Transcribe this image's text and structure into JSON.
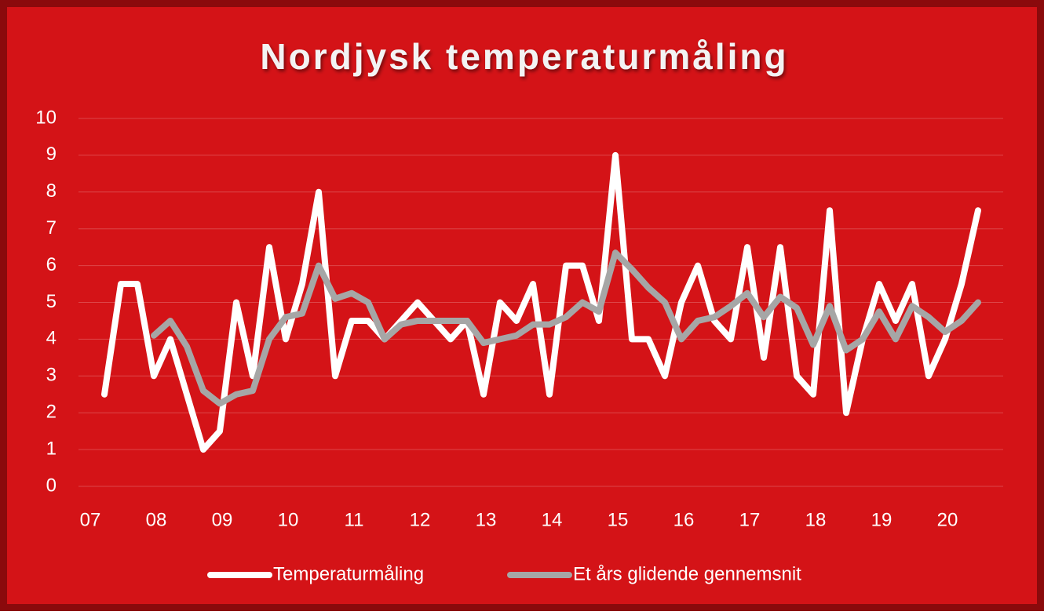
{
  "chart_data": {
    "type": "line",
    "title": "Nordjysk temperaturmåling",
    "categories": [
      "07",
      null,
      null,
      null,
      "08",
      null,
      null,
      null,
      "09",
      null,
      null,
      null,
      "10",
      null,
      null,
      null,
      "11",
      null,
      null,
      null,
      "12",
      null,
      null,
      null,
      "13",
      null,
      null,
      null,
      "14",
      null,
      null,
      null,
      "15",
      null,
      null,
      null,
      "16",
      null,
      null,
      null,
      "17",
      null,
      null,
      null,
      "18",
      null,
      null,
      null,
      "19",
      null,
      null,
      null,
      "20",
      null,
      null
    ],
    "series": [
      {
        "name": "Temperaturmåling",
        "color": "#ffffff",
        "values": [
          null,
          2.5,
          5.5,
          5.5,
          3,
          4,
          2.5,
          1,
          1.5,
          5,
          3,
          6.5,
          4,
          5.5,
          8,
          3,
          4.5,
          4.5,
          4,
          4.5,
          5,
          4.5,
          4,
          4.5,
          2.5,
          5,
          4.5,
          5.5,
          2.5,
          6,
          6,
          4.5,
          9,
          4,
          4,
          3,
          5,
          6,
          4.5,
          4,
          6.5,
          3.5,
          6.5,
          3,
          2.5,
          7.5,
          2,
          4,
          5.5,
          4.5,
          5.5,
          3,
          4,
          5.5,
          7.5
        ]
      },
      {
        "name": "Et års glidende gennemsnit",
        "color": "#a6a6a6",
        "values": [
          null,
          null,
          null,
          null,
          4.1,
          4.5,
          3.8,
          2.6,
          2.25,
          2.5,
          2.6,
          4.0,
          4.6,
          4.7,
          6.0,
          5.1,
          5.25,
          5.0,
          4.0,
          4.4,
          4.5,
          4.5,
          4.5,
          4.5,
          3.9,
          4.0,
          4.1,
          4.4,
          4.4,
          4.6,
          5.0,
          4.75,
          6.35,
          5.9,
          5.4,
          5.0,
          4.0,
          4.5,
          4.6,
          4.9,
          5.25,
          4.6,
          5.15,
          4.85,
          3.85,
          4.9,
          3.7,
          4.0,
          4.75,
          4.0,
          4.9,
          4.6,
          4.2,
          4.5,
          5.0
        ]
      }
    ],
    "ylim": [
      0,
      10
    ],
    "yticks": [
      0,
      1,
      2,
      3,
      4,
      5,
      6,
      7,
      8,
      9,
      10
    ],
    "grid": true,
    "legend": "bottom"
  }
}
